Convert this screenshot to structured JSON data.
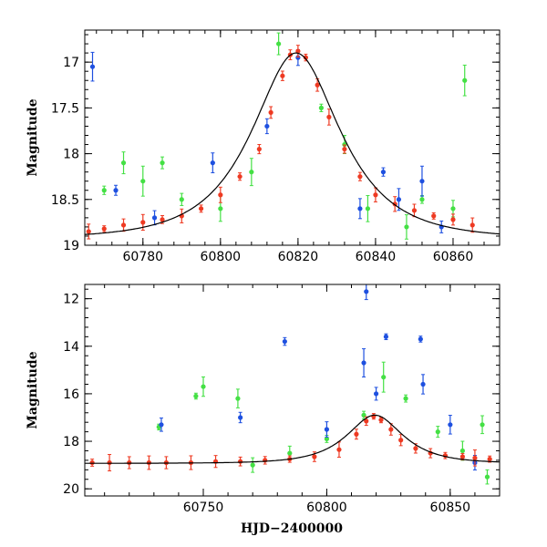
{
  "figure": {
    "xlabel": "HJD−2400000"
  },
  "colors": {
    "red": "#ee3a22",
    "green": "#44e044",
    "blue": "#1e50e0",
    "model": "#000000"
  },
  "chart_data": [
    {
      "type": "scatter",
      "title": "",
      "xlabel": "",
      "ylabel": "Magnitude",
      "xlim": [
        60765,
        60872
      ],
      "ylim": [
        19.0,
        16.65
      ],
      "y_inverted": true,
      "x_ticks": [
        60780,
        60800,
        60820,
        60840,
        60860
      ],
      "y_ticks": [
        17,
        17.5,
        18,
        18.5,
        19
      ],
      "y_tick_labels": [
        "17",
        "17.5",
        "18",
        "18.5",
        "19"
      ],
      "model_curve": {
        "baseline": 18.93,
        "peak_time": 60819.5,
        "peak_mag": 16.9,
        "width_days": 11.0
      },
      "series": [
        {
          "color": "red",
          "x": [
            60766,
            60770,
            60775,
            60780,
            60785,
            60790,
            60795,
            60800,
            60805,
            60810,
            60813,
            60816,
            60818,
            60820,
            60822,
            60825,
            60828,
            60832,
            60836,
            60840,
            60845,
            60850,
            60855,
            60860,
            60865
          ],
          "y": [
            18.85,
            18.82,
            18.78,
            18.75,
            18.72,
            18.68,
            18.6,
            18.45,
            18.25,
            17.95,
            17.55,
            17.15,
            16.92,
            16.88,
            16.95,
            17.25,
            17.6,
            17.95,
            18.25,
            18.45,
            18.55,
            18.62,
            18.68,
            18.72,
            18.78
          ]
        },
        {
          "color": "green",
          "x": [
            60770,
            60775,
            60780,
            60785,
            60790,
            60800,
            60808,
            60815,
            60826,
            60832,
            60838,
            60848,
            60852,
            60860,
            60863
          ],
          "y": [
            18.4,
            18.1,
            18.3,
            18.1,
            18.5,
            18.6,
            18.2,
            16.8,
            17.5,
            17.9,
            18.6,
            18.8,
            18.5,
            18.6,
            17.2
          ]
        },
        {
          "color": "blue",
          "x": [
            60767,
            60773,
            60783,
            60798,
            60812,
            60820,
            60836,
            60842,
            60846,
            60852,
            60857
          ],
          "y": [
            17.05,
            18.4,
            18.7,
            18.1,
            17.7,
            16.95,
            18.6,
            18.2,
            18.5,
            18.3,
            18.8
          ]
        }
      ]
    },
    {
      "type": "scatter",
      "title": "",
      "xlabel": "HJD−2400000",
      "ylabel": "Magnitude",
      "xlim": [
        60702,
        60870
      ],
      "ylim": [
        20.3,
        11.4
      ],
      "y_inverted": true,
      "x_ticks": [
        60750,
        60800,
        60850
      ],
      "y_ticks": [
        12,
        14,
        16,
        18,
        20
      ],
      "y_tick_labels": [
        "12",
        "14",
        "16",
        "18",
        "20"
      ],
      "model_curve": {
        "baseline": 18.93,
        "peak_time": 60819.5,
        "peak_mag": 16.9,
        "width_days": 11.0
      },
      "series": [
        {
          "color": "red",
          "x": [
            60705,
            60712,
            60720,
            60728,
            60735,
            60745,
            60755,
            60765,
            60775,
            60785,
            60795,
            60805,
            60812,
            60816,
            60819,
            60822,
            60826,
            60830,
            60836,
            60842,
            60848,
            60855,
            60860,
            60866
          ],
          "y": [
            18.9,
            18.9,
            18.9,
            18.9,
            18.9,
            18.9,
            18.85,
            18.85,
            18.8,
            18.75,
            18.65,
            18.35,
            17.7,
            17.15,
            16.95,
            17.1,
            17.5,
            17.95,
            18.3,
            18.5,
            18.6,
            18.65,
            18.7,
            18.75
          ]
        },
        {
          "color": "green",
          "x": [
            60732,
            60747,
            60750,
            60764,
            60770,
            60785,
            60800,
            60815,
            60823,
            60832,
            60845,
            60855,
            60863,
            60865
          ],
          "y": [
            17.4,
            16.1,
            15.7,
            16.2,
            19.0,
            18.5,
            17.9,
            16.9,
            15.3,
            16.2,
            17.6,
            18.4,
            17.3,
            19.5
          ]
        },
        {
          "color": "blue",
          "x": [
            60733,
            60765,
            60783,
            60800,
            60815,
            60816,
            60820,
            60824,
            60838,
            60839,
            60850,
            60860
          ],
          "y": [
            17.3,
            17.0,
            13.8,
            17.5,
            14.7,
            11.7,
            16.0,
            13.6,
            13.7,
            15.6,
            17.3,
            18.9
          ]
        }
      ]
    }
  ]
}
